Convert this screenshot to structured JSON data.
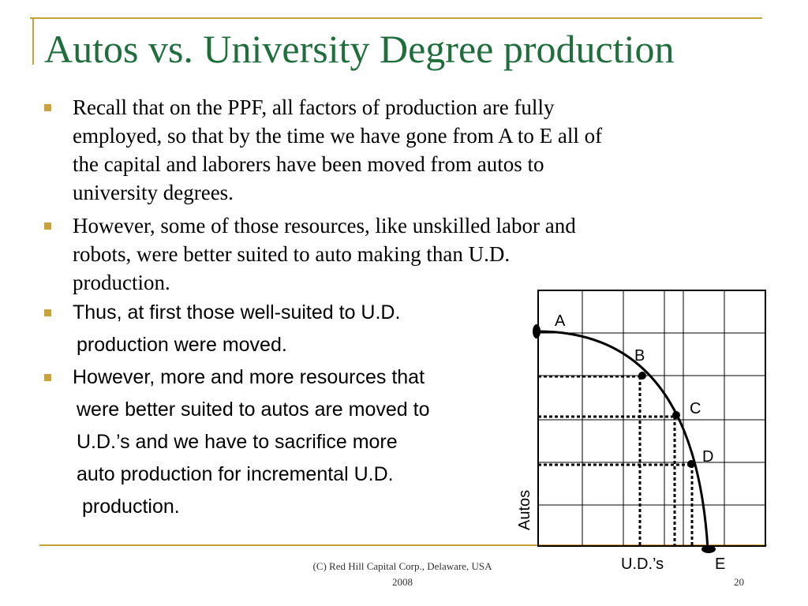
{
  "title": "Autos vs. University Degree production",
  "bullets": [
    {
      "lines": [
        "Recall that on the PPF, all factors of production are fully",
        "employed, so that by the time we have gone from A to E all of",
        "the capital and laborers have been moved from autos to",
        "university degrees."
      ]
    },
    {
      "lines": [
        "However, some of those resources, like unskilled labor and",
        "robots, were better suited to auto making than U.D.",
        "production."
      ]
    },
    {
      "lines": [
        "Thus, at first those well-suited to U.D.",
        "production were moved."
      ]
    },
    {
      "lines": [
        "However, more and more resources that",
        "were better suited to autos are moved to",
        "U.D.’s and we have to sacrifice more",
        "auto production for incremental U.D.",
        "production."
      ]
    }
  ],
  "diagram": {
    "point_labels": [
      "A",
      "B",
      "C",
      "D",
      "E"
    ],
    "x_axis_label": "U.D.’s",
    "y_axis_label": "Autos"
  },
  "footer": {
    "copyright_line1": "(C) Red Hill Capital Corp., Delaware, USA",
    "copyright_line2": "2008",
    "page_number": "20"
  },
  "colors": {
    "title": "#1f6e3c",
    "accent": "#c8a33a"
  }
}
